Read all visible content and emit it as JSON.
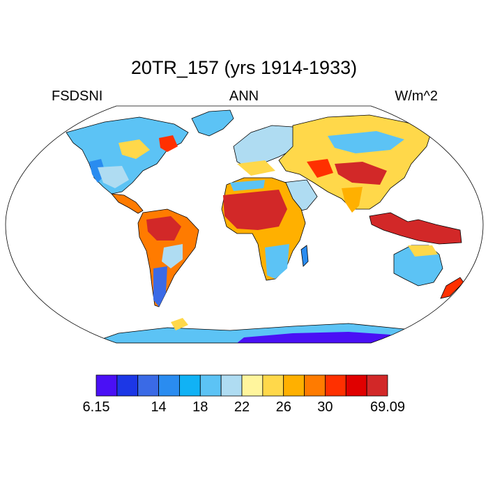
{
  "title": "20TR_157 (yrs 1914-1933)",
  "left_string": "FSDSNI",
  "center_string": "ANN",
  "right_string": "W/m^2",
  "projection": "Robinson",
  "colorbar": {
    "colors": [
      "#4a10f5",
      "#1c37e6",
      "#3a6ae6",
      "#2a8cf0",
      "#11b2f5",
      "#5cc3f5",
      "#afdcf2",
      "#fff59d",
      "#ffd84a",
      "#ffb000",
      "#ff7b00",
      "#ff3000",
      "#e00000",
      "#d22828"
    ],
    "labels": [
      "6.15",
      "14",
      "18",
      "22",
      "26",
      "30",
      "69.09"
    ],
    "label_boxes": [
      0,
      3,
      5,
      7,
      9,
      11,
      14
    ]
  }
}
